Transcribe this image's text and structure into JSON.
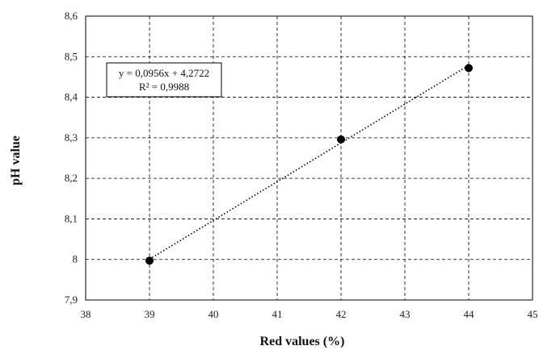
{
  "chart_data": {
    "type": "scatter",
    "title": "",
    "xlabel": "Red values (%)",
    "ylabel": "pH value",
    "xlim": [
      38,
      45
    ],
    "ylim": [
      7.9,
      8.6
    ],
    "x_ticks": [
      "38",
      "39",
      "40",
      "41",
      "42",
      "43",
      "44",
      "45"
    ],
    "y_ticks": [
      "7,9",
      "8",
      "8,1",
      "8,2",
      "8,3",
      "8,4",
      "8,5",
      "8,6"
    ],
    "grid": true,
    "series": [
      {
        "x": [
          39,
          42,
          44
        ],
        "y": [
          7.997,
          8.296,
          8.472
        ],
        "color": "#000000"
      }
    ],
    "trendline": {
      "slope": 0.0956,
      "intercept": 4.2722,
      "x_range": [
        39,
        44
      ],
      "style": "dotted"
    },
    "annotation": {
      "equation": "y = 0,0956x + 4,2722",
      "r_squared": "R² = 0,9988"
    }
  }
}
